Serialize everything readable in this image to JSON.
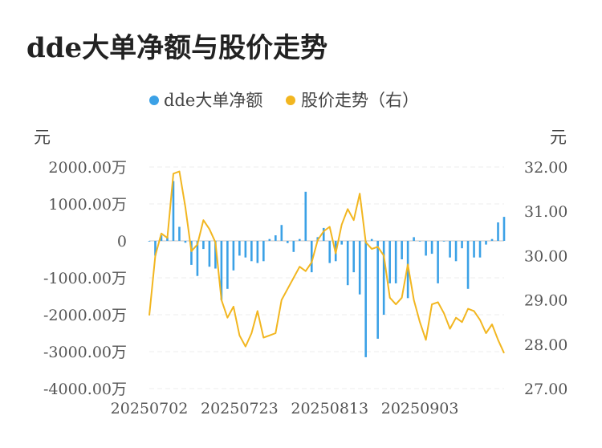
{
  "title": "dde大单净额与股价走势",
  "chart_data": {
    "type": "bar+line",
    "left_unit": "元",
    "right_unit": "元",
    "legend": [
      {
        "name": "dde大单净额",
        "color": "#3ba1e6"
      },
      {
        "name": "股价走势（右）",
        "color": "#f2b620"
      }
    ],
    "left_axis": {
      "min": -4000,
      "max": 2000,
      "ticks": [
        {
          "value": 2000,
          "label": "2000.00万"
        },
        {
          "value": 1000,
          "label": "1000.00万"
        },
        {
          "value": 0,
          "label": "0"
        },
        {
          "value": -1000,
          "label": "-1000.00万"
        },
        {
          "value": -2000,
          "label": "-2000.00万"
        },
        {
          "value": -3000,
          "label": "-3000.00万"
        },
        {
          "value": -4000,
          "label": "-4000.00万"
        }
      ]
    },
    "right_axis": {
      "min": 27.0,
      "max": 32.0,
      "ticks": [
        {
          "value": 32.0,
          "label": "32.00"
        },
        {
          "value": 31.0,
          "label": "31.00"
        },
        {
          "value": 30.0,
          "label": "30.00"
        },
        {
          "value": 29.0,
          "label": "29.00"
        },
        {
          "value": 28.0,
          "label": "28.00"
        },
        {
          "value": 27.0,
          "label": "27.00"
        }
      ]
    },
    "x_tick_labels": [
      {
        "index": 0,
        "label": "20250702"
      },
      {
        "index": 15,
        "label": "20250723"
      },
      {
        "index": 30,
        "label": "20250813"
      },
      {
        "index": 45,
        "label": "20250903"
      }
    ],
    "dde": [
      0,
      -400,
      150,
      100,
      1620,
      380,
      -50,
      -650,
      -950,
      -220,
      -700,
      -750,
      -1600,
      -1300,
      -800,
      -400,
      -450,
      -550,
      -600,
      -550,
      50,
      150,
      430,
      -60,
      -300,
      50,
      1330,
      -850,
      100,
      350,
      -600,
      -550,
      -100,
      -1200,
      -850,
      -1450,
      -3150,
      50,
      -2650,
      -2000,
      -1150,
      -1150,
      -500,
      -1550,
      100,
      0,
      -400,
      -350,
      -1150,
      0,
      -450,
      -550,
      -200,
      -1300,
      -450,
      -450,
      -100,
      50,
      500,
      650
    ],
    "price": [
      28.65,
      30.0,
      30.5,
      30.4,
      31.85,
      31.9,
      31.1,
      30.1,
      30.25,
      30.8,
      30.6,
      30.3,
      29.0,
      28.6,
      28.85,
      28.2,
      27.95,
      28.25,
      28.75,
      28.15,
      28.2,
      28.25,
      29.0,
      29.25,
      29.5,
      29.75,
      29.65,
      29.85,
      30.35,
      30.55,
      30.65,
      30.05,
      30.7,
      31.05,
      30.8,
      31.4,
      30.3,
      30.15,
      30.2,
      30.0,
      29.05,
      28.9,
      29.05,
      29.8,
      29.0,
      28.5,
      28.1,
      28.9,
      28.95,
      28.7,
      28.35,
      28.6,
      28.5,
      28.8,
      28.75,
      28.55,
      28.25,
      28.45,
      28.1,
      27.8
    ]
  }
}
